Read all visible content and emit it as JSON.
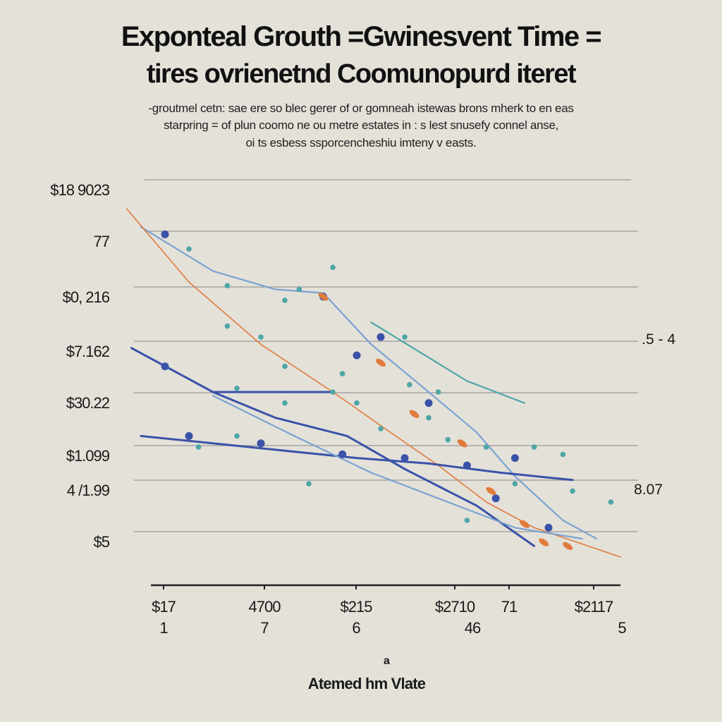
{
  "chart_data": {
    "type": "line",
    "title": "Exponteal Grouth =Gwinesvent Time =",
    "title_line2": "tires ovrienetnd Coomunopurd iteret",
    "subtitle": [
      "-groutmel cetn: sae ere so blec gerer of or gomneah istewas brons mherk to en eas",
      "starpring = of plun coomo ne ou metre estates in : s lest snusefy connel anse,",
      "oi ts esbess ssporcencheshiu imteny v easts."
    ],
    "xlabel": "Atemed hm Vlate",
    "xlabel_mark": "a",
    "ylabel": "",
    "y_tick_labels": [
      "$18 9023",
      "77",
      "$0, 216",
      "$7.162",
      "$30.22",
      "$1.099",
      "4 /1.99",
      "$5"
    ],
    "x_tick_labels": [
      {
        "top": "$17",
        "bottom": "1"
      },
      {
        "top": "4700",
        "bottom": "7"
      },
      {
        "top": "$215",
        "bottom": "6"
      },
      {
        "top": "$2710",
        "bottom": "46"
      },
      {
        "top": "71",
        "bottom": ""
      },
      {
        "top": "$2117",
        "bottom": "5"
      }
    ],
    "annotations": [
      ".5 - 4",
      "8.07"
    ],
    "xlim": [
      0,
      100
    ],
    "ylim": [
      0,
      100
    ],
    "grid": true,
    "colors": {
      "navy": "#3a52a8",
      "lightblue": "#7aa3d1",
      "orange": "#e07b3c",
      "teal": "#4ea6a6",
      "grid": "#9a9a9a"
    },
    "series": [
      {
        "color": "lightblue",
        "points": [
          [
            0,
            90
          ],
          [
            15,
            78
          ],
          [
            28,
            73
          ],
          [
            38,
            72
          ],
          [
            48,
            58
          ],
          [
            60,
            45
          ],
          [
            70,
            34
          ],
          [
            78,
            22
          ],
          [
            88,
            10
          ],
          [
            95,
            5
          ]
        ]
      },
      {
        "color": "orange",
        "points": [
          [
            -3,
            95
          ],
          [
            10,
            75
          ],
          [
            25,
            58
          ],
          [
            40,
            45
          ],
          [
            52,
            34
          ],
          [
            62,
            25
          ],
          [
            72,
            15
          ],
          [
            82,
            8
          ],
          [
            100,
            0
          ]
        ]
      },
      {
        "color": "navy",
        "points": [
          [
            -2,
            57
          ],
          [
            15,
            45
          ],
          [
            28,
            38
          ],
          [
            43,
            33
          ],
          [
            55,
            24
          ],
          [
            70,
            14
          ],
          [
            82,
            3
          ]
        ]
      },
      {
        "color": "navy",
        "points": [
          [
            0,
            33
          ],
          [
            15,
            31
          ],
          [
            30,
            29
          ],
          [
            45,
            27
          ],
          [
            60,
            25.5
          ],
          [
            75,
            23
          ],
          [
            90,
            21
          ]
        ]
      },
      {
        "color": "lightblue",
        "points": [
          [
            15,
            44
          ],
          [
            32,
            33
          ],
          [
            48,
            23
          ],
          [
            62,
            16
          ],
          [
            78,
            8
          ],
          [
            92,
            5
          ]
        ]
      },
      {
        "color": "navy",
        "points": [
          [
            15,
            45
          ],
          [
            25,
            45
          ],
          [
            34,
            45
          ],
          [
            40,
            45
          ]
        ]
      },
      {
        "color": "teal",
        "points": [
          [
            48,
            64
          ],
          [
            58,
            56
          ],
          [
            68,
            48
          ],
          [
            80,
            42
          ]
        ]
      }
    ],
    "scatter": [
      {
        "color": "navy",
        "points": [
          [
            5,
            88
          ],
          [
            38,
            71
          ],
          [
            50,
            60
          ],
          [
            45,
            55
          ],
          [
            78,
            27
          ],
          [
            60,
            42
          ],
          [
            85,
            8
          ],
          [
            74,
            16
          ],
          [
            10,
            33
          ],
          [
            25,
            31
          ],
          [
            42,
            28
          ],
          [
            55,
            27
          ],
          [
            68,
            25
          ],
          [
            5,
            52
          ]
        ]
      },
      {
        "color": "teal",
        "points": [
          [
            10,
            84
          ],
          [
            18,
            74
          ],
          [
            30,
            70
          ],
          [
            25,
            60
          ],
          [
            30,
            52
          ],
          [
            40,
            45
          ],
          [
            45,
            42
          ],
          [
            60,
            38
          ],
          [
            72,
            30
          ],
          [
            82,
            30
          ],
          [
            88,
            28
          ],
          [
            78,
            20
          ],
          [
            64,
            32
          ],
          [
            55,
            60
          ],
          [
            62,
            45
          ],
          [
            50,
            35
          ],
          [
            20,
            46
          ],
          [
            30,
            42
          ],
          [
            68,
            10
          ],
          [
            90,
            18
          ],
          [
            98,
            15
          ],
          [
            12,
            30
          ],
          [
            20,
            33
          ],
          [
            35,
            20
          ],
          [
            18,
            63
          ],
          [
            42,
            50
          ],
          [
            56,
            47
          ],
          [
            33,
            73
          ],
          [
            40,
            79
          ]
        ]
      },
      {
        "color": "orange",
        "points": [
          [
            38,
            71
          ],
          [
            50,
            53
          ],
          [
            57,
            39
          ],
          [
            67,
            31
          ],
          [
            73,
            18
          ],
          [
            80,
            9
          ],
          [
            84,
            4
          ],
          [
            89,
            3
          ]
        ]
      }
    ]
  }
}
